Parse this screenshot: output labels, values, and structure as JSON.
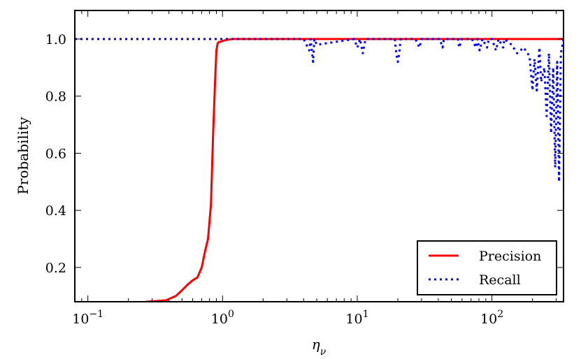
{
  "chart_data": {
    "type": "line",
    "xscale": "log",
    "xlim": [
      0.08,
      340
    ],
    "ylim": [
      0.08,
      1.1
    ],
    "xlabel_symbol": "η",
    "xlabel_subscript": "ν",
    "ylabel": "Probability",
    "grid": false,
    "legend_position": "lower-right",
    "x_ticks": [
      {
        "value": 0.1,
        "base": "10",
        "exp": "−1"
      },
      {
        "value": 1,
        "base": "10",
        "exp": "0"
      },
      {
        "value": 10,
        "base": "10",
        "exp": "1"
      },
      {
        "value": 100,
        "base": "10",
        "exp": "2"
      }
    ],
    "y_ticks": [
      {
        "value": 0.2,
        "label": "0.2"
      },
      {
        "value": 0.4,
        "label": "0.4"
      },
      {
        "value": 0.6,
        "label": "0.6"
      },
      {
        "value": 0.8,
        "label": "0.8"
      },
      {
        "value": 1.0,
        "label": "1.0"
      }
    ],
    "series": [
      {
        "name": "Precision",
        "color": "#ff0000",
        "style": "solid",
        "x": [
          0.27,
          0.38,
          0.45,
          0.5,
          0.55,
          0.6,
          0.65,
          0.7,
          0.74,
          0.78,
          0.82,
          0.85,
          0.88,
          0.9,
          0.92,
          0.94,
          0.96,
          1.0,
          1.05,
          1.1,
          1.2,
          1.3,
          1.5,
          2,
          5,
          10,
          20,
          50,
          100,
          200,
          340
        ],
        "y": [
          0.08,
          0.085,
          0.1,
          0.12,
          0.14,
          0.155,
          0.165,
          0.2,
          0.255,
          0.3,
          0.42,
          0.66,
          0.85,
          0.96,
          0.985,
          0.99,
          0.99,
          0.993,
          0.996,
          0.998,
          1.0,
          1.0,
          1.0,
          1.0,
          1.0,
          1.0,
          1.0,
          1.0,
          1.0,
          1.0,
          1.0
        ]
      },
      {
        "name": "Recall",
        "color": "#0000ff",
        "style": "dotted",
        "x": [
          0.08,
          4.0,
          4.4,
          4.5,
          4.7,
          4.8,
          5.0,
          9.5,
          10,
          10.5,
          11,
          11.5,
          19,
          19.5,
          20,
          20.5,
          21,
          27,
          29,
          30,
          32,
          41,
          43,
          44,
          46,
          56,
          57,
          60,
          63,
          71,
          76,
          78,
          81,
          85,
          92,
          95,
          100,
          107,
          112,
          121,
          124,
          140,
          154,
          172,
          190,
          200,
          207,
          215,
          225,
          232,
          245,
          255,
          265,
          275,
          285,
          295,
          305,
          315,
          325,
          340
        ],
        "y": [
          1.0,
          1.0,
          0.96,
          1.0,
          0.92,
          1.0,
          0.98,
          1.0,
          0.97,
          1.0,
          0.95,
          1.0,
          1.0,
          0.95,
          0.92,
          0.95,
          1.0,
          1.0,
          0.97,
          1.0,
          1.0,
          1.0,
          0.97,
          1.0,
          1.0,
          1.0,
          0.97,
          1.0,
          1.0,
          1.0,
          0.97,
          1.0,
          0.96,
          1.0,
          0.97,
          1.0,
          1.0,
          0.96,
          1.0,
          0.97,
          1.0,
          0.98,
          0.95,
          0.97,
          0.94,
          0.82,
          0.93,
          0.82,
          0.97,
          0.85,
          0.9,
          0.73,
          0.95,
          0.67,
          0.9,
          0.55,
          0.92,
          0.5,
          0.95,
          1.0
        ]
      }
    ]
  }
}
